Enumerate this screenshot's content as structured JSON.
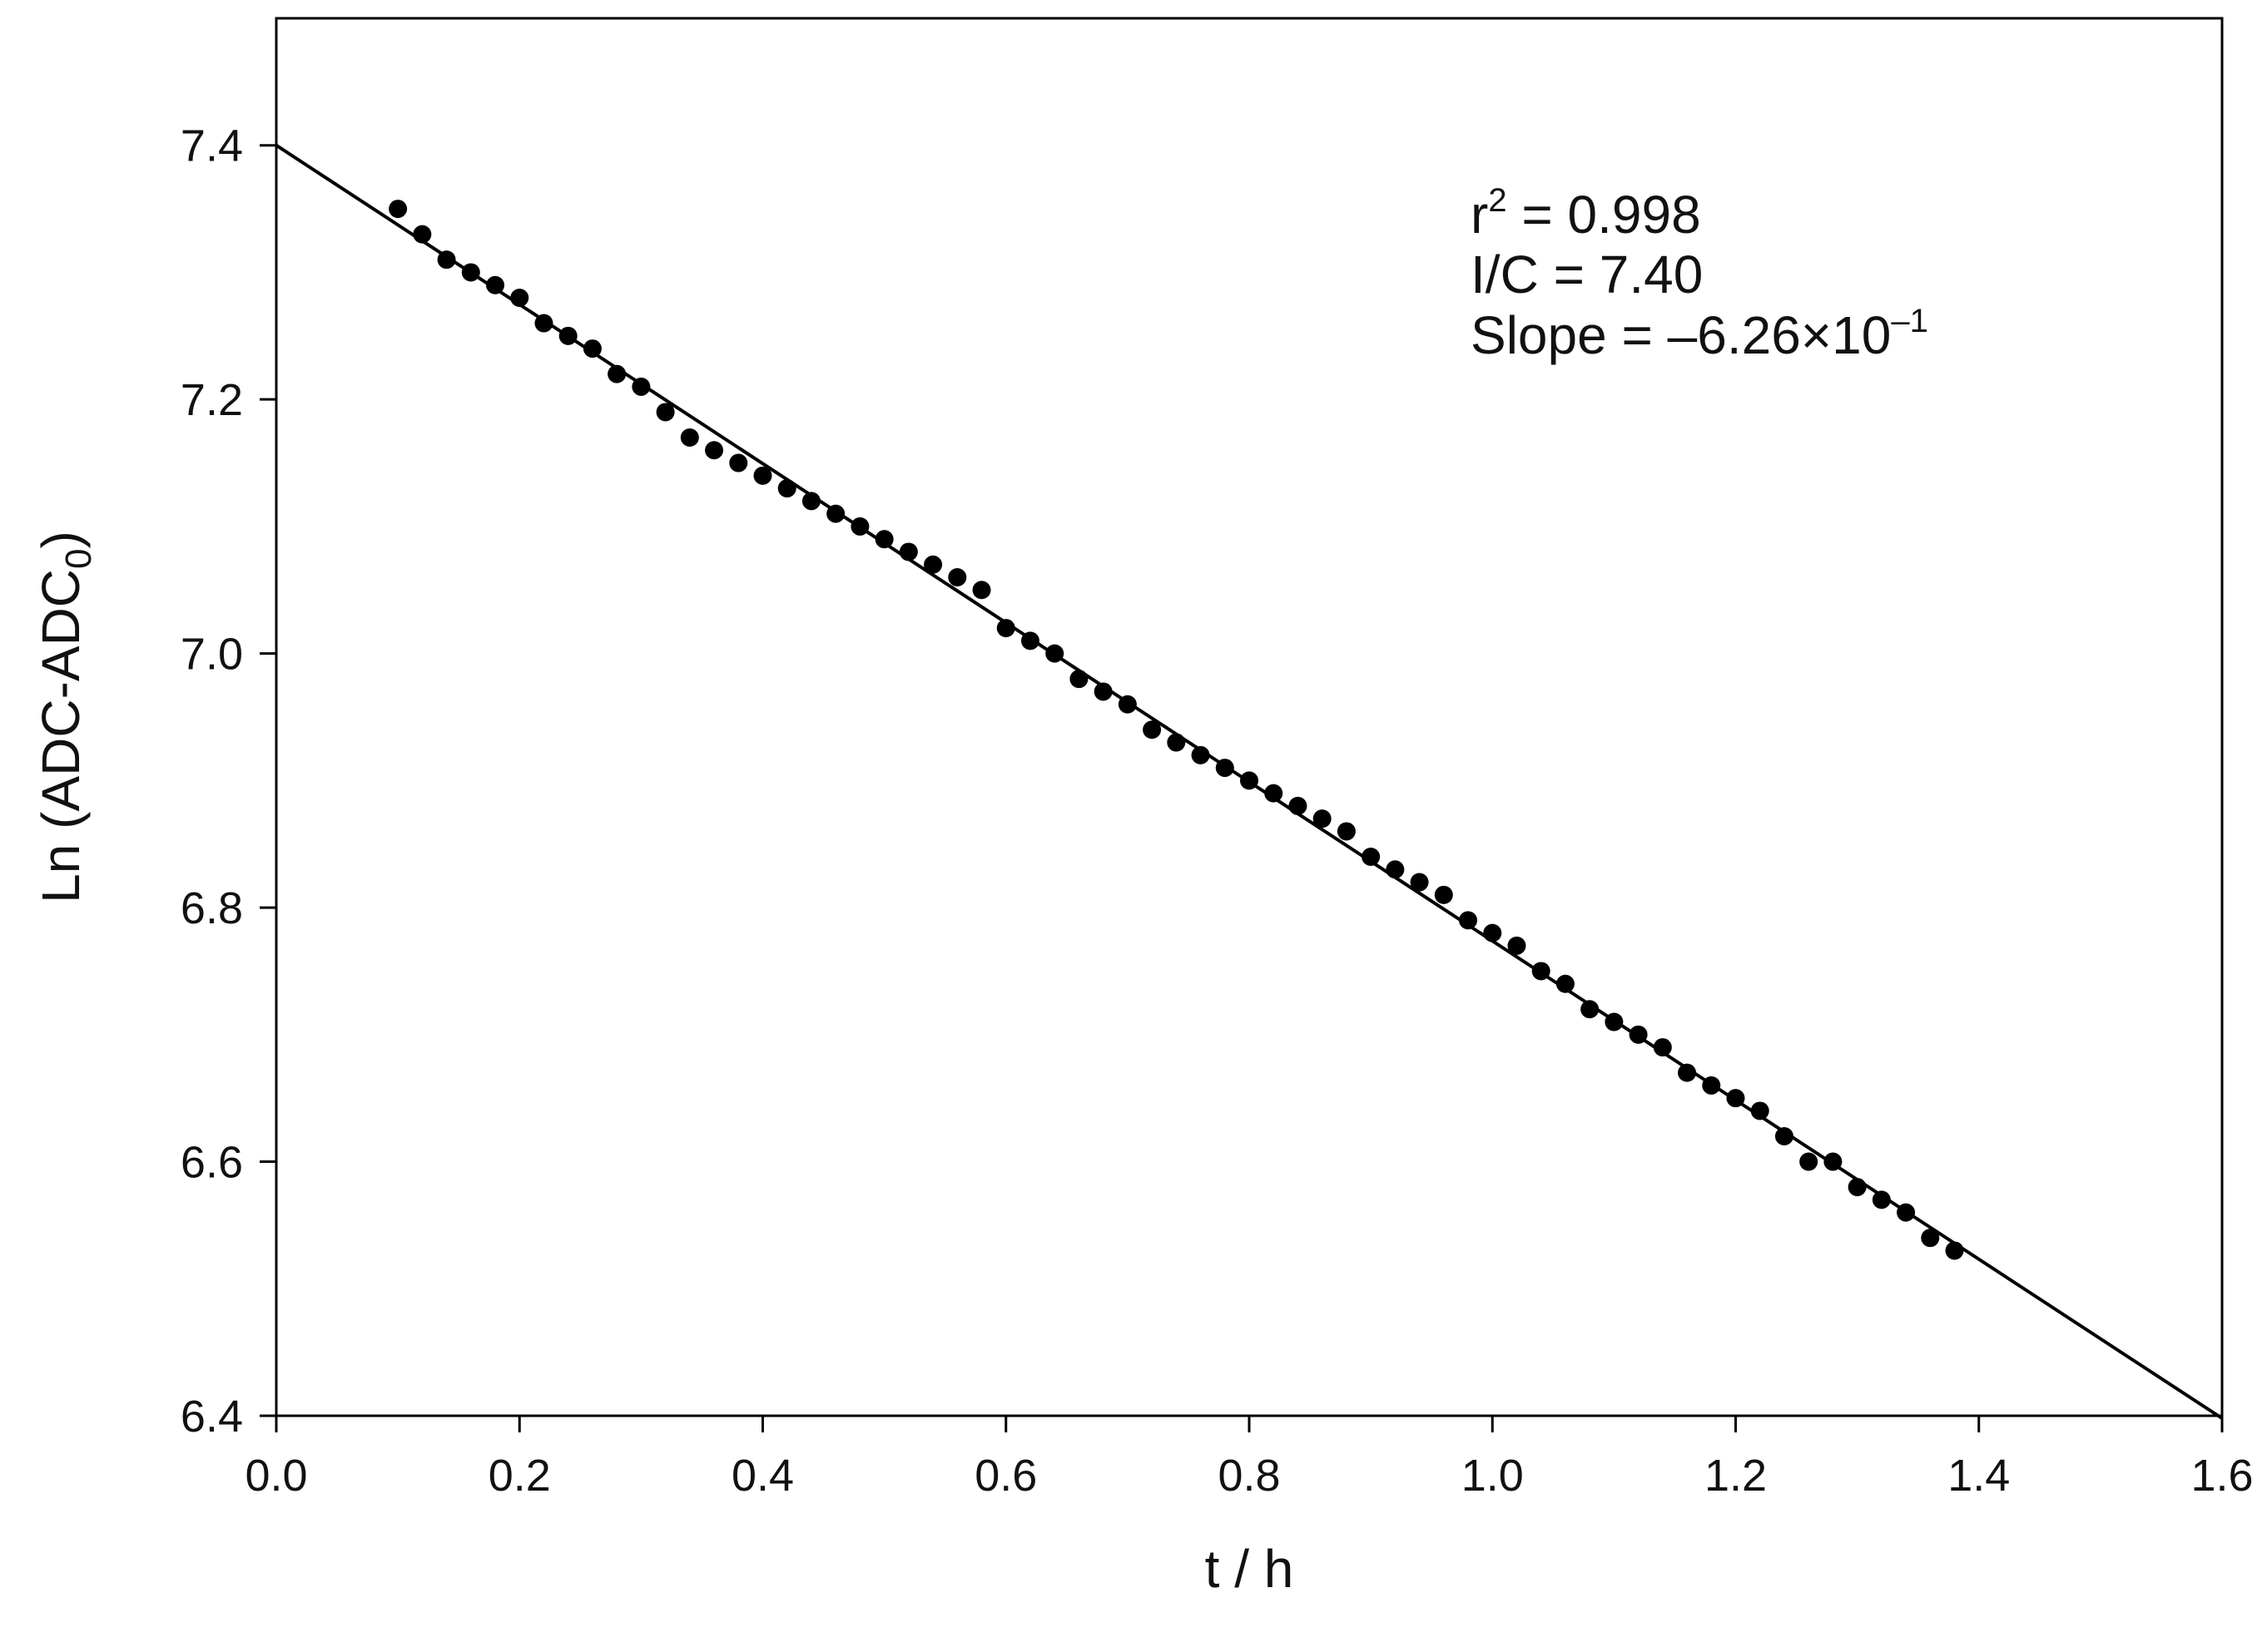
{
  "chart_data": {
    "type": "scatter",
    "title": "",
    "xlabel": "t  / h",
    "ylabel_main": "Ln (ADC-ADC",
    "ylabel_sub": "0",
    "ylabel_close": ")",
    "xlim": [
      0.0,
      1.6
    ],
    "ylim": [
      6.4,
      7.5
    ],
    "xticks": [
      0.0,
      0.2,
      0.4,
      0.6,
      0.8,
      1.0,
      1.2,
      1.4,
      1.6
    ],
    "yticks": [
      6.4,
      6.6,
      6.8,
      7.0,
      7.2,
      7.4
    ],
    "xtick_labels": [
      "0.0",
      "0.2",
      "0.4",
      "0.6",
      "0.8",
      "1.0",
      "1.2",
      "1.4",
      "1.6"
    ],
    "ytick_labels": [
      "6.4",
      "6.6",
      "6.8",
      "7.0",
      "7.2",
      "7.4"
    ],
    "grid": false,
    "colors": {
      "points": "#000000",
      "fit_line": "#000000",
      "axes": "#000000"
    },
    "series": [
      {
        "kind": "scatter",
        "x": [
          0.1,
          0.12,
          0.14,
          0.16,
          0.18,
          0.2,
          0.22,
          0.24,
          0.26,
          0.28,
          0.3,
          0.32,
          0.34,
          0.36,
          0.38,
          0.4,
          0.42,
          0.44,
          0.46,
          0.48,
          0.5,
          0.52,
          0.54,
          0.56,
          0.58,
          0.6,
          0.62,
          0.64,
          0.66,
          0.68,
          0.7,
          0.72,
          0.74,
          0.76,
          0.78,
          0.8,
          0.82,
          0.84,
          0.86,
          0.88,
          0.9,
          0.92,
          0.94,
          0.96,
          0.98,
          1.0,
          1.02,
          1.04,
          1.06,
          1.08,
          1.1,
          1.12,
          1.14,
          1.16,
          1.18,
          1.2,
          1.22,
          1.24,
          1.26,
          1.28,
          1.3,
          1.32,
          1.34,
          1.36,
          1.38
        ],
        "y": [
          7.35,
          7.33,
          7.31,
          7.3,
          7.29,
          7.28,
          7.26,
          7.25,
          7.24,
          7.22,
          7.21,
          7.19,
          7.17,
          7.16,
          7.15,
          7.14,
          7.13,
          7.12,
          7.11,
          7.1,
          7.09,
          7.08,
          7.07,
          7.06,
          7.05,
          7.02,
          7.01,
          7.0,
          6.98,
          6.97,
          6.96,
          6.94,
          6.93,
          6.92,
          6.91,
          6.9,
          6.89,
          6.88,
          6.87,
          6.86,
          6.84,
          6.83,
          6.82,
          6.81,
          6.79,
          6.78,
          6.77,
          6.75,
          6.74,
          6.72,
          6.71,
          6.7,
          6.69,
          6.67,
          6.66,
          6.65,
          6.64,
          6.62,
          6.6,
          6.6,
          6.58,
          6.57,
          6.56,
          6.54,
          6.53
        ]
      },
      {
        "kind": "line",
        "x": [
          0.0,
          1.6
        ],
        "y": [
          7.4,
          6.398
        ]
      }
    ],
    "annotations": {
      "r2_prefix": "r",
      "r2_sup": "2",
      "r2_value": " = 0.998",
      "ic_text": "I/C = 7.40",
      "slope_text": "Slope = –6.26×10",
      "slope_sup": "–1"
    }
  }
}
